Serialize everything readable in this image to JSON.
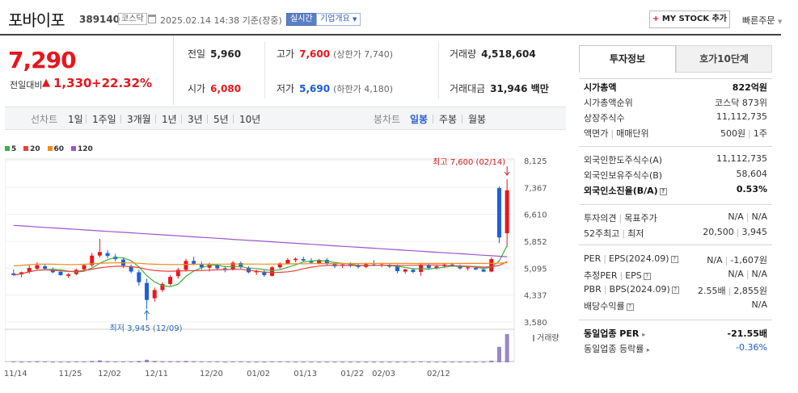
{
  "header": {
    "name": "포바이포",
    "code": "389140",
    "market": "코스닥",
    "date": "2025.02.14 14:38 기준(장중)",
    "realtime": "실시간",
    "company_info": "기업개요",
    "my_stock": "MY STOCK 추가",
    "quick_order": "빠른주문"
  },
  "price": {
    "current": "7,290",
    "change_label": "전일대비",
    "change": "1,330",
    "change_pct": "+22.32%"
  },
  "stats": {
    "prev_label": "전일",
    "prev": "5,960",
    "open_label": "시가",
    "open": "6,080",
    "high_label": "고가",
    "high": "7,600",
    "upper_limit": "(상한가 7,740)",
    "low_label": "저가",
    "low": "5,690",
    "lower_limit": "(하한가 4,180)",
    "volume_label": "거래량",
    "volume": "4,518,604",
    "amount_label": "거래대금",
    "amount": "31,946 백만"
  },
  "period_tabs": {
    "select_label": "선차트",
    "items": [
      "1일",
      "1주일",
      "3개월",
      "1년",
      "3년",
      "5년",
      "10년"
    ],
    "candle_label": "봉차트",
    "candle_items": [
      "일봉",
      "주봉",
      "월봉"
    ],
    "active_candle": "일봉"
  },
  "chart_data": {
    "type": "candlestick",
    "legend": [
      {
        "name": "5",
        "color": "#3cb043"
      },
      {
        "name": "20",
        "color": "#e8413a"
      },
      {
        "name": "60",
        "color": "#f08c1c"
      },
      {
        "name": "120",
        "color": "#9d55c9"
      }
    ],
    "y_ticks": [
      "8,125",
      "7,367",
      "6,610",
      "5,852",
      "5,095",
      "4,337",
      "3,580"
    ],
    "ylim": [
      3580,
      8125
    ],
    "x_ticks": [
      "11/14",
      "11/25",
      "12/02",
      "12/11",
      "12/20",
      "01/02",
      "01/13",
      "01/22",
      "02/03",
      "02/12"
    ],
    "high_annotation": "최고 7,600 (02/14)",
    "low_annotation": "최저 3,945 (12/09)",
    "volume_label": "거래량",
    "candles": [
      {
        "o": 4950,
        "h": 5060,
        "l": 4880,
        "c": 4900
      },
      {
        "o": 4920,
        "h": 5000,
        "l": 4840,
        "c": 4980
      },
      {
        "o": 4990,
        "h": 5180,
        "l": 4940,
        "c": 5100
      },
      {
        "o": 5080,
        "h": 5260,
        "l": 5030,
        "c": 5180
      },
      {
        "o": 5150,
        "h": 5210,
        "l": 5040,
        "c": 5080
      },
      {
        "o": 5070,
        "h": 5120,
        "l": 4950,
        "c": 4980
      },
      {
        "o": 4990,
        "h": 5050,
        "l": 4880,
        "c": 4900
      },
      {
        "o": 4880,
        "h": 4960,
        "l": 4820,
        "c": 4920
      },
      {
        "o": 4930,
        "h": 5080,
        "l": 4900,
        "c": 5050
      },
      {
        "o": 5060,
        "h": 5220,
        "l": 5010,
        "c": 5180
      },
      {
        "o": 5180,
        "h": 5520,
        "l": 5130,
        "c": 5450
      },
      {
        "o": 5450,
        "h": 5920,
        "l": 5400,
        "c": 5550
      },
      {
        "o": 5520,
        "h": 5600,
        "l": 5380,
        "c": 5440
      },
      {
        "o": 5420,
        "h": 5500,
        "l": 5280,
        "c": 5350
      },
      {
        "o": 5340,
        "h": 5400,
        "l": 5100,
        "c": 5170
      },
      {
        "o": 5150,
        "h": 5200,
        "l": 4950,
        "c": 5000
      },
      {
        "o": 4980,
        "h": 5050,
        "l": 4600,
        "c": 4700
      },
      {
        "o": 4680,
        "h": 4800,
        "l": 3945,
        "c": 4200
      },
      {
        "o": 4250,
        "h": 4550,
        "l": 4150,
        "c": 4480
      },
      {
        "o": 4480,
        "h": 4700,
        "l": 4420,
        "c": 4650
      },
      {
        "o": 4650,
        "h": 4900,
        "l": 4600,
        "c": 4850
      },
      {
        "o": 4870,
        "h": 5100,
        "l": 4800,
        "c": 5050
      },
      {
        "o": 5050,
        "h": 5360,
        "l": 5000,
        "c": 5300
      },
      {
        "o": 5300,
        "h": 5420,
        "l": 5180,
        "c": 5220
      },
      {
        "o": 5200,
        "h": 5280,
        "l": 5050,
        "c": 5120
      },
      {
        "o": 5110,
        "h": 5250,
        "l": 5000,
        "c": 5200
      },
      {
        "o": 5180,
        "h": 5220,
        "l": 5050,
        "c": 5090
      },
      {
        "o": 5090,
        "h": 5160,
        "l": 4980,
        "c": 5050
      },
      {
        "o": 5060,
        "h": 5300,
        "l": 5030,
        "c": 5250
      },
      {
        "o": 5240,
        "h": 5280,
        "l": 5080,
        "c": 5120
      },
      {
        "o": 5110,
        "h": 5150,
        "l": 4950,
        "c": 4980
      },
      {
        "o": 4980,
        "h": 5050,
        "l": 4900,
        "c": 5020
      },
      {
        "o": 5000,
        "h": 5040,
        "l": 4850,
        "c": 4900
      },
      {
        "o": 4880,
        "h": 5150,
        "l": 4860,
        "c": 5120
      },
      {
        "o": 5120,
        "h": 5260,
        "l": 5080,
        "c": 5230
      },
      {
        "o": 5220,
        "h": 5380,
        "l": 5200,
        "c": 5330
      },
      {
        "o": 5320,
        "h": 5400,
        "l": 5260,
        "c": 5360
      },
      {
        "o": 5350,
        "h": 5420,
        "l": 5280,
        "c": 5310
      },
      {
        "o": 5310,
        "h": 5380,
        "l": 5220,
        "c": 5250
      },
      {
        "o": 5240,
        "h": 5360,
        "l": 5200,
        "c": 5330
      },
      {
        "o": 5330,
        "h": 5380,
        "l": 5180,
        "c": 5220
      },
      {
        "o": 5210,
        "h": 5260,
        "l": 5100,
        "c": 5150
      },
      {
        "o": 5160,
        "h": 5240,
        "l": 5100,
        "c": 5200
      },
      {
        "o": 5200,
        "h": 5260,
        "l": 5120,
        "c": 5170
      },
      {
        "o": 5170,
        "h": 5220,
        "l": 5090,
        "c": 5130
      },
      {
        "o": 5130,
        "h": 5250,
        "l": 5100,
        "c": 5210
      },
      {
        "o": 5200,
        "h": 5320,
        "l": 5150,
        "c": 5180
      },
      {
        "o": 5180,
        "h": 5230,
        "l": 5120,
        "c": 5200
      },
      {
        "o": 5190,
        "h": 5220,
        "l": 5100,
        "c": 5140
      },
      {
        "o": 5140,
        "h": 5200,
        "l": 4950,
        "c": 5010
      },
      {
        "o": 5000,
        "h": 5080,
        "l": 4940,
        "c": 5060
      },
      {
        "o": 5050,
        "h": 5100,
        "l": 4950,
        "c": 4990
      },
      {
        "o": 4990,
        "h": 5220,
        "l": 4880,
        "c": 5180
      },
      {
        "o": 5170,
        "h": 5220,
        "l": 5050,
        "c": 5100
      },
      {
        "o": 5100,
        "h": 5180,
        "l": 5060,
        "c": 5150
      },
      {
        "o": 5150,
        "h": 5230,
        "l": 5100,
        "c": 5200
      },
      {
        "o": 5200,
        "h": 5250,
        "l": 5130,
        "c": 5160
      },
      {
        "o": 5160,
        "h": 5200,
        "l": 5050,
        "c": 5090
      },
      {
        "o": 5090,
        "h": 5150,
        "l": 5030,
        "c": 5120
      },
      {
        "o": 5100,
        "h": 5160,
        "l": 5040,
        "c": 5060
      },
      {
        "o": 5060,
        "h": 5120,
        "l": 4980,
        "c": 5000
      },
      {
        "o": 5000,
        "h": 5400,
        "l": 4980,
        "c": 5350
      },
      {
        "o": 7350,
        "h": 7400,
        "l": 5800,
        "c": 5960
      },
      {
        "o": 6080,
        "h": 7600,
        "l": 5690,
        "c": 7290
      }
    ],
    "volumes": [
      0.03,
      0.02,
      0.03,
      0.04,
      0.03,
      0.02,
      0.02,
      0.02,
      0.03,
      0.03,
      0.05,
      0.07,
      0.04,
      0.03,
      0.03,
      0.03,
      0.05,
      0.09,
      0.05,
      0.04,
      0.04,
      0.04,
      0.05,
      0.04,
      0.03,
      0.03,
      0.03,
      0.02,
      0.03,
      0.03,
      0.02,
      0.02,
      0.02,
      0.03,
      0.03,
      0.03,
      0.02,
      0.02,
      0.02,
      0.02,
      0.02,
      0.02,
      0.02,
      0.02,
      0.02,
      0.02,
      0.02,
      0.02,
      0.02,
      0.02,
      0.02,
      0.02,
      0.03,
      0.02,
      0.02,
      0.02,
      0.02,
      0.02,
      0.02,
      0.02,
      0.02,
      0.06,
      0.55,
      1.0
    ]
  },
  "right_panel": {
    "tab_active": "투자정보",
    "tab_other": "호가10단계",
    "group1": [
      {
        "k": "시가총액",
        "v": "822억원",
        "bold": true
      },
      {
        "k": "시가총액순위",
        "v": "코스닥 873위"
      },
      {
        "k": "상장주식수",
        "v": "11,112,735"
      },
      {
        "k": "액면가",
        "k2": "매매단위",
        "v": "500원",
        "v2": "1주"
      }
    ],
    "group2": [
      {
        "k": "외국인한도주식수(A)",
        "v": "11,112,735"
      },
      {
        "k": "외국인보유주식수(B)",
        "v": "58,604"
      },
      {
        "k": "외국인소진율(B/A)",
        "v": "0.53%",
        "bold": true
      }
    ],
    "group3": [
      {
        "k": "투자의견",
        "k2": "목표주가",
        "v": "N/A",
        "v2": "N/A"
      },
      {
        "k": "52주최고",
        "k2": "최저",
        "v": "20,500",
        "v2": "3,945"
      }
    ],
    "group4": [
      {
        "k": "PER",
        "k2": "EPS(2024.09)",
        "v": "N/A",
        "v2": "-1,607원"
      },
      {
        "k": "추정PER",
        "k2": "EPS",
        "v": "N/A",
        "v2": "N/A"
      },
      {
        "k": "PBR",
        "k2": "BPS(2024.09)",
        "v": "2.55배",
        "v2": "2,855원"
      },
      {
        "k": "배당수익률",
        "v": "N/A"
      }
    ],
    "group5": [
      {
        "k": "동일업종 PER",
        "v": "-21.55배",
        "bold": true
      },
      {
        "k": "동일업종 등락률",
        "v": "-0.36%"
      }
    ]
  }
}
